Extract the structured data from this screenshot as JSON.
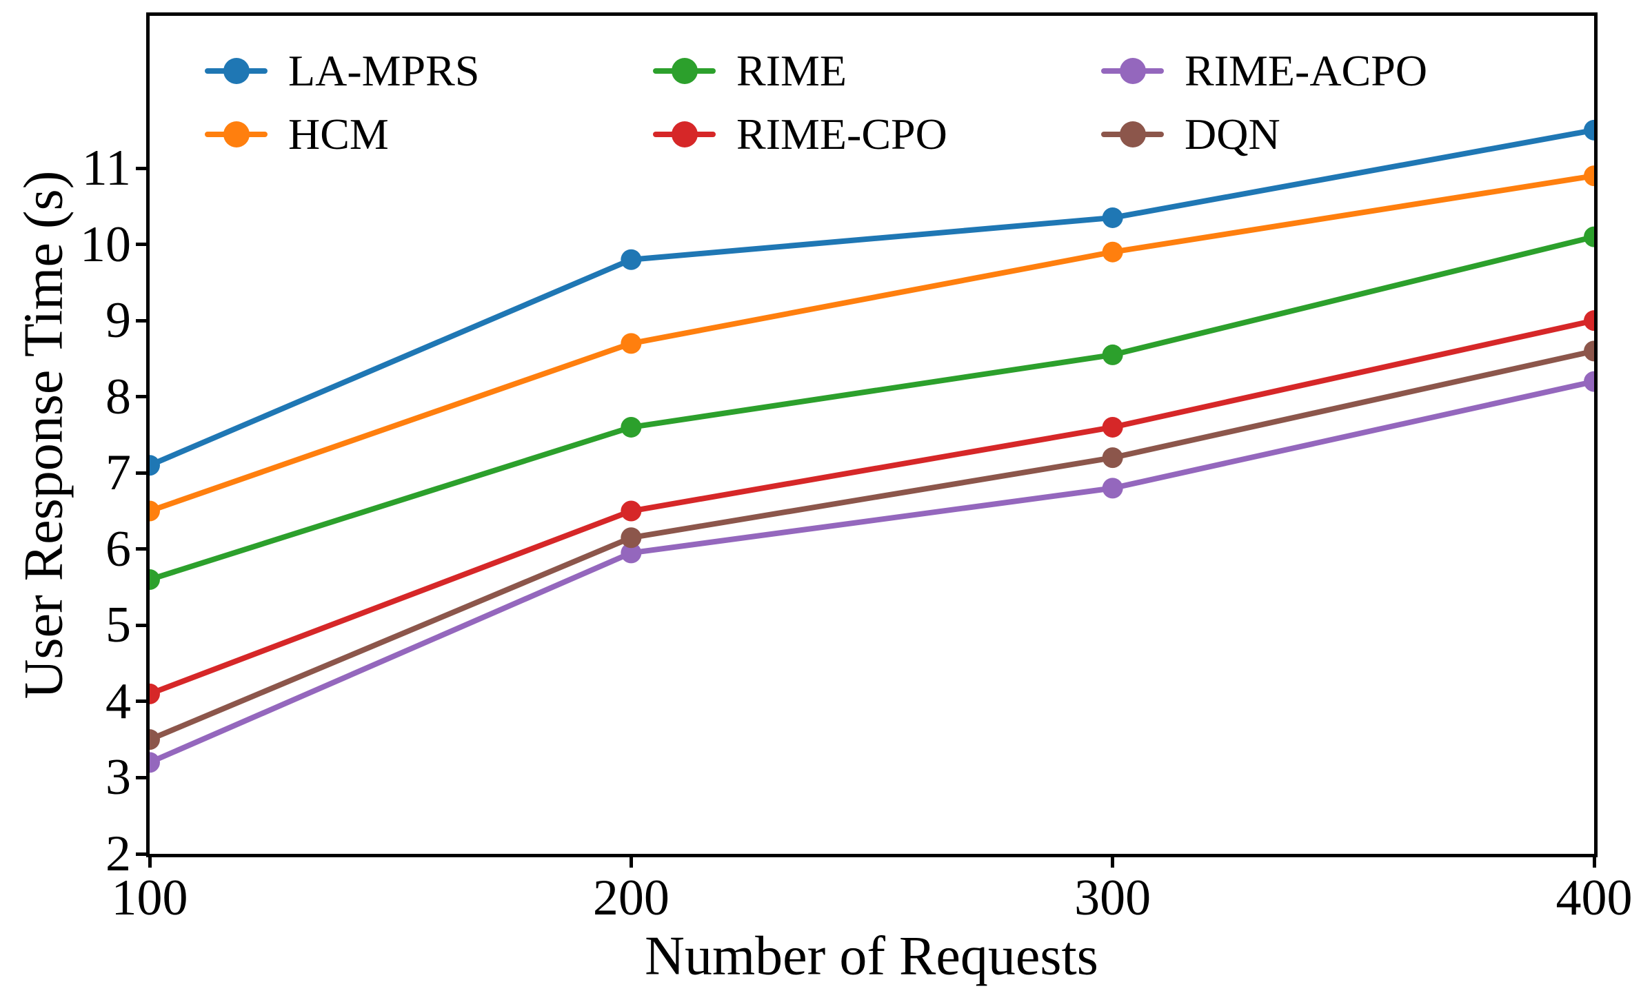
{
  "figure": {
    "kind": "line chart"
  },
  "chart_data": {
    "type": "line",
    "x": [
      100,
      200,
      300,
      400
    ],
    "xlabel": "Number of Requests",
    "ylabel": "User Response Time (s)",
    "xlim": [
      100,
      400
    ],
    "ylim": [
      2,
      13
    ],
    "x_ticks": [
      100,
      200,
      300,
      400
    ],
    "y_ticks": [
      2,
      3,
      4,
      5,
      6,
      7,
      8,
      9,
      10,
      11
    ],
    "grid": false,
    "legend_position": "top inside, 3 columns x 2 rows, no frame",
    "marker": "circle",
    "series": [
      {
        "name": "LA-MPRS",
        "color": "#1f77b4",
        "values": [
          7.1,
          9.8,
          10.35,
          11.5
        ]
      },
      {
        "name": "HCM",
        "color": "#ff7f0e",
        "values": [
          6.5,
          8.7,
          9.9,
          10.9
        ]
      },
      {
        "name": "RIME",
        "color": "#2ca02c",
        "values": [
          5.6,
          7.6,
          8.55,
          10.1
        ]
      },
      {
        "name": "RIME-CPO",
        "color": "#d62728",
        "values": [
          4.1,
          6.5,
          7.6,
          9.0
        ]
      },
      {
        "name": "RIME-ACPO",
        "color": "#9467bd",
        "values": [
          3.2,
          5.95,
          6.8,
          8.2
        ]
      },
      {
        "name": "DQN",
        "color": "#8c564b",
        "values": [
          3.5,
          6.15,
          7.2,
          8.6
        ]
      }
    ]
  }
}
